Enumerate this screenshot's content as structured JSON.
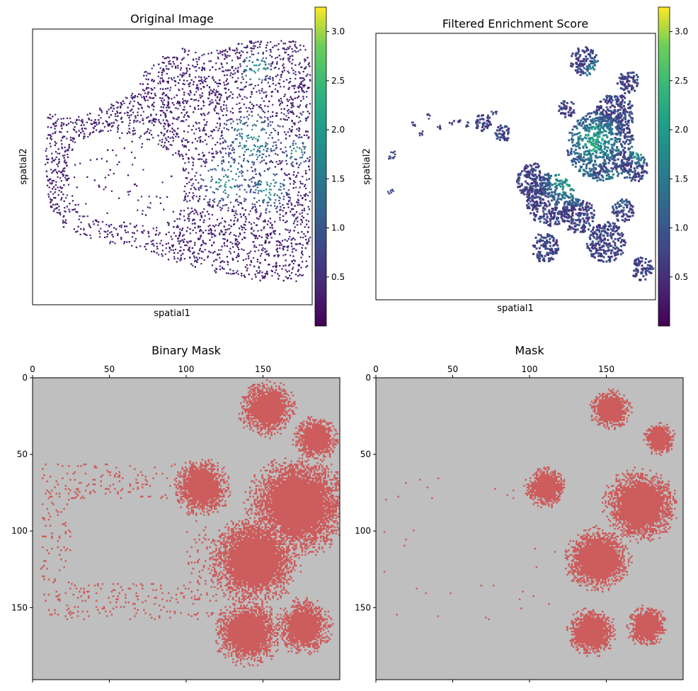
{
  "chart_data": [
    {
      "panel": "original",
      "type": "heatmap",
      "title": "Original Image",
      "xlabel": "spatial1",
      "ylabel": "spatial2",
      "colorbar": {
        "colormap": "viridis",
        "range": [
          0.0,
          3.25
        ],
        "ticks": [
          "0.5",
          "1.0",
          "1.5",
          "2.0",
          "2.5",
          "3.0"
        ]
      }
    },
    {
      "panel": "filtered",
      "type": "heatmap",
      "title": "Filtered Enrichment Score",
      "xlabel": "spatial1",
      "ylabel": "spatial2",
      "colorbar": {
        "colormap": "viridis",
        "range": [
          0.0,
          3.25
        ],
        "ticks": [
          "0.5",
          "1.0",
          "1.5",
          "2.0",
          "2.5",
          "3.0"
        ]
      }
    },
    {
      "panel": "binary",
      "type": "heatmap",
      "title": "Binary Mask",
      "grid_size": [
        200,
        197
      ],
      "xticks": [
        "0",
        "50",
        "100",
        "150"
      ],
      "yticks": [
        "0",
        "50",
        "100",
        "150"
      ],
      "colors": {
        "background": "#bfbfbf",
        "mask": "#cd5c5c"
      }
    },
    {
      "panel": "mask",
      "type": "heatmap",
      "title": "Mask",
      "grid_size": [
        200,
        197
      ],
      "xticks": [
        "0",
        "50",
        "100",
        "150"
      ],
      "yticks": [
        "0",
        "50",
        "100",
        "150"
      ],
      "colors": {
        "background": "#bfbfbf",
        "mask": "#cd5c5c"
      }
    }
  ]
}
